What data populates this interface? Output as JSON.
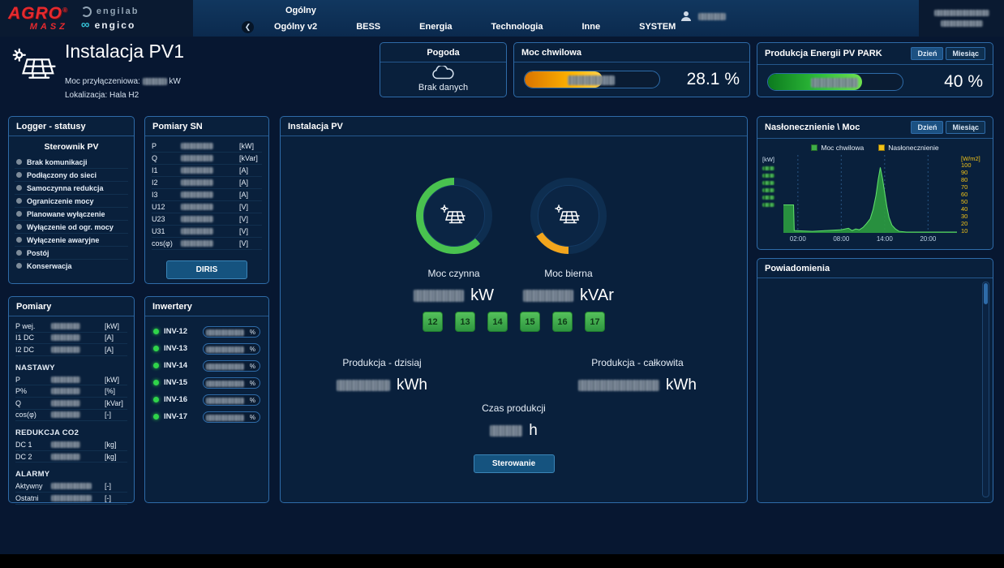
{
  "topbar": {
    "brand": {
      "agro": "AGRO",
      "agro_reg": "®",
      "masz": "MASZ",
      "engilab": "engilab",
      "engico": "engico"
    },
    "tab_row1": "Ogólny",
    "back_icon": "❮",
    "tabs": [
      "Ogólny v2",
      "BESS",
      "Energia",
      "Technologia",
      "Inne",
      "SYSTEM"
    ]
  },
  "header": {
    "title": "Instalacja PV1",
    "power_label": "Moc przyłączeniowa:",
    "power_unit": "kW",
    "location_label": "Lokalizacja:",
    "location_value": "Hala H2"
  },
  "weather": {
    "title": "Pogoda",
    "status": "Brak danych"
  },
  "moc_chwilowa": {
    "title": "Moc chwilowa",
    "value": "28.1 %"
  },
  "produkcja_pv": {
    "title": "Produkcja Energii PV PARK",
    "value": "40 %",
    "buttons": [
      "Dzień",
      "Miesiąc"
    ]
  },
  "logger": {
    "title": "Logger - statusy",
    "subtitle": "Sterownik PV",
    "statuses": [
      "Brak komunikacji",
      "Podłączony do sieci",
      "Samoczynna redukcja",
      "Ograniczenie mocy",
      "Planowane wyłączenie",
      "Wyłączenie od ogr. mocy",
      "Wyłączenie awaryjne",
      "Postój",
      "Konserwacja"
    ]
  },
  "pomiary_sn": {
    "title": "Pomiary SN",
    "rows": [
      {
        "label": "P",
        "unit": "[kW]"
      },
      {
        "label": "Q",
        "unit": "[kVar]"
      },
      {
        "label": "I1",
        "unit": "[A]"
      },
      {
        "label": "I2",
        "unit": "[A]"
      },
      {
        "label": "I3",
        "unit": "[A]"
      },
      {
        "label": "U12",
        "unit": "[V]"
      },
      {
        "label": "U23",
        "unit": "[V]"
      },
      {
        "label": "U31",
        "unit": "[V]"
      },
      {
        "label": "cos(φ)",
        "unit": "[V]"
      }
    ],
    "button": "DIRIS"
  },
  "pomiary": {
    "title": "Pomiary",
    "rows": [
      {
        "label": "P wej.",
        "unit": "[kW]"
      },
      {
        "label": "I1 DC",
        "unit": "[A]"
      },
      {
        "label": "I2 DC",
        "unit": "[A]"
      }
    ],
    "sections": [
      {
        "title": "NASTAWY",
        "rows": [
          {
            "label": "P",
            "unit": "[kW]"
          },
          {
            "label": "P%",
            "unit": "[%]"
          },
          {
            "label": "Q",
            "unit": "[kVar]"
          },
          {
            "label": "cos(φ)",
            "unit": "[-]"
          }
        ]
      },
      {
        "title": "REDUKCJA CO2",
        "rows": [
          {
            "label": "DC 1",
            "unit": "[kg]"
          },
          {
            "label": "DC 2",
            "unit": "[kg]"
          }
        ]
      },
      {
        "title": "ALARMY",
        "rows": [
          {
            "label": "Aktywny",
            "unit": "[-]"
          },
          {
            "label": "Ostatni",
            "unit": "[-]"
          }
        ]
      }
    ]
  },
  "inwertery": {
    "title": "Inwertery",
    "percent_suffix": "%",
    "items": [
      "INV-12",
      "INV-13",
      "INV-14",
      "INV-15",
      "INV-16",
      "INV-17"
    ]
  },
  "instalacja": {
    "title": "Instalacja PV",
    "gauges": [
      {
        "label": "Moc czynna",
        "unit": "kW"
      },
      {
        "label": "Moc bierna",
        "unit": "kVAr"
      }
    ],
    "squares": [
      "12",
      "13",
      "14",
      "15",
      "16",
      "17"
    ],
    "prod_today_label": "Produkcja - dzisiaj",
    "prod_today_unit": "kWh",
    "prod_total_label": "Produkcja - całkowita",
    "prod_total_unit": "kWh",
    "czas_label": "Czas produkcji",
    "czas_unit": "h",
    "button": "Sterowanie"
  },
  "naslonecznienie": {
    "title": "Nasłonecznienie \\ Moc",
    "buttons": [
      "Dzień",
      "Miesiąc"
    ]
  },
  "powiadomienia": {
    "title": "Powiadomienia"
  },
  "chart_data": {
    "type": "area",
    "title": "Nasłonecznienie \\ Moc",
    "legend": [
      "Moc chwilowa",
      "Nasłonecznienie"
    ],
    "legend_colors": [
      "#3fae49",
      "#f2c318"
    ],
    "y_left_label": "[kW]",
    "y_right_label": "[W/m2]",
    "y_right_ticks": [
      100,
      90,
      80,
      70,
      60,
      50,
      40,
      30,
      20,
      10
    ],
    "x_ticks": [
      "02:00",
      "08:00",
      "14:00",
      "20:00"
    ],
    "x_range": [
      0,
      24
    ],
    "y_range": [
      0,
      100
    ],
    "series": [
      {
        "name": "Moc chwilowa",
        "color": "#3fae49",
        "points": [
          [
            0,
            36
          ],
          [
            1.4,
            36
          ],
          [
            1.5,
            3
          ],
          [
            4,
            2
          ],
          [
            6,
            3
          ],
          [
            8,
            4
          ],
          [
            9,
            6
          ],
          [
            9.5,
            3
          ],
          [
            10,
            5
          ],
          [
            10.5,
            4
          ],
          [
            11,
            7
          ],
          [
            11.5,
            12
          ],
          [
            12,
            18
          ],
          [
            12.4,
            30
          ],
          [
            12.8,
            48
          ],
          [
            13.1,
            68
          ],
          [
            13.4,
            84
          ],
          [
            13.7,
            70
          ],
          [
            14,
            52
          ],
          [
            14.3,
            34
          ],
          [
            14.6,
            20
          ],
          [
            15,
            10
          ],
          [
            15.5,
            5
          ],
          [
            16,
            2
          ],
          [
            17,
            1
          ],
          [
            24,
            1
          ]
        ]
      }
    ]
  }
}
